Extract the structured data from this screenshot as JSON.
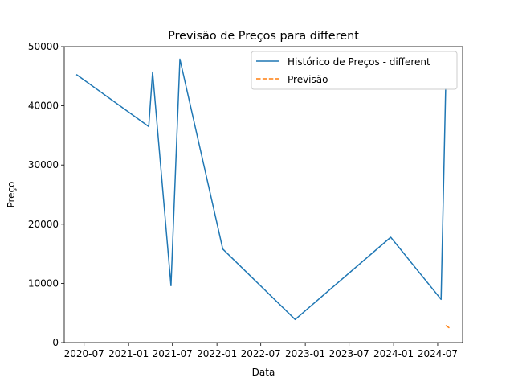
{
  "chart_data": {
    "type": "line",
    "title": "Previsão de Preços para different",
    "xlabel": "Data",
    "ylabel": "Preço",
    "xlim": [
      "2020-04-10",
      "2024-10-12"
    ],
    "ylim": [
      0,
      50000
    ],
    "grid": false,
    "legend_position": "top-right",
    "x_ticks": [
      "2020-07-01",
      "2021-01-01",
      "2021-07-01",
      "2022-01-01",
      "2022-07-01",
      "2023-01-01",
      "2023-07-01",
      "2024-01-01",
      "2024-07-01"
    ],
    "x_tick_labels": [
      "2020-07",
      "2021-01",
      "2021-07",
      "2022-01",
      "2022-07",
      "2023-01",
      "2023-07",
      "2024-01",
      "2024-07"
    ],
    "y_ticks": [
      0,
      10000,
      20000,
      30000,
      40000,
      50000
    ],
    "y_tick_labels": [
      "0",
      "10000",
      "20000",
      "30000",
      "40000",
      "50000"
    ],
    "series": [
      {
        "name": "Histórico de Preços - different",
        "color": "#1f77b4",
        "style": "solid",
        "points": [
          {
            "x": "2020-05-30",
            "y": 45300
          },
          {
            "x": "2021-03-25",
            "y": 36500
          },
          {
            "x": "2021-04-10",
            "y": 45700
          },
          {
            "x": "2021-06-25",
            "y": 9600
          },
          {
            "x": "2021-08-01",
            "y": 47900
          },
          {
            "x": "2022-01-25",
            "y": 15800
          },
          {
            "x": "2022-11-20",
            "y": 3900
          },
          {
            "x": "2023-12-20",
            "y": 17800
          },
          {
            "x": "2024-07-15",
            "y": 7300
          },
          {
            "x": "2024-08-03",
            "y": 43000
          }
        ]
      },
      {
        "name": "Previsão",
        "color": "#ff7f0e",
        "style": "dashed",
        "points": [
          {
            "x": "2024-08-03",
            "y": 2900
          },
          {
            "x": "2024-08-25",
            "y": 2300
          }
        ]
      }
    ]
  }
}
